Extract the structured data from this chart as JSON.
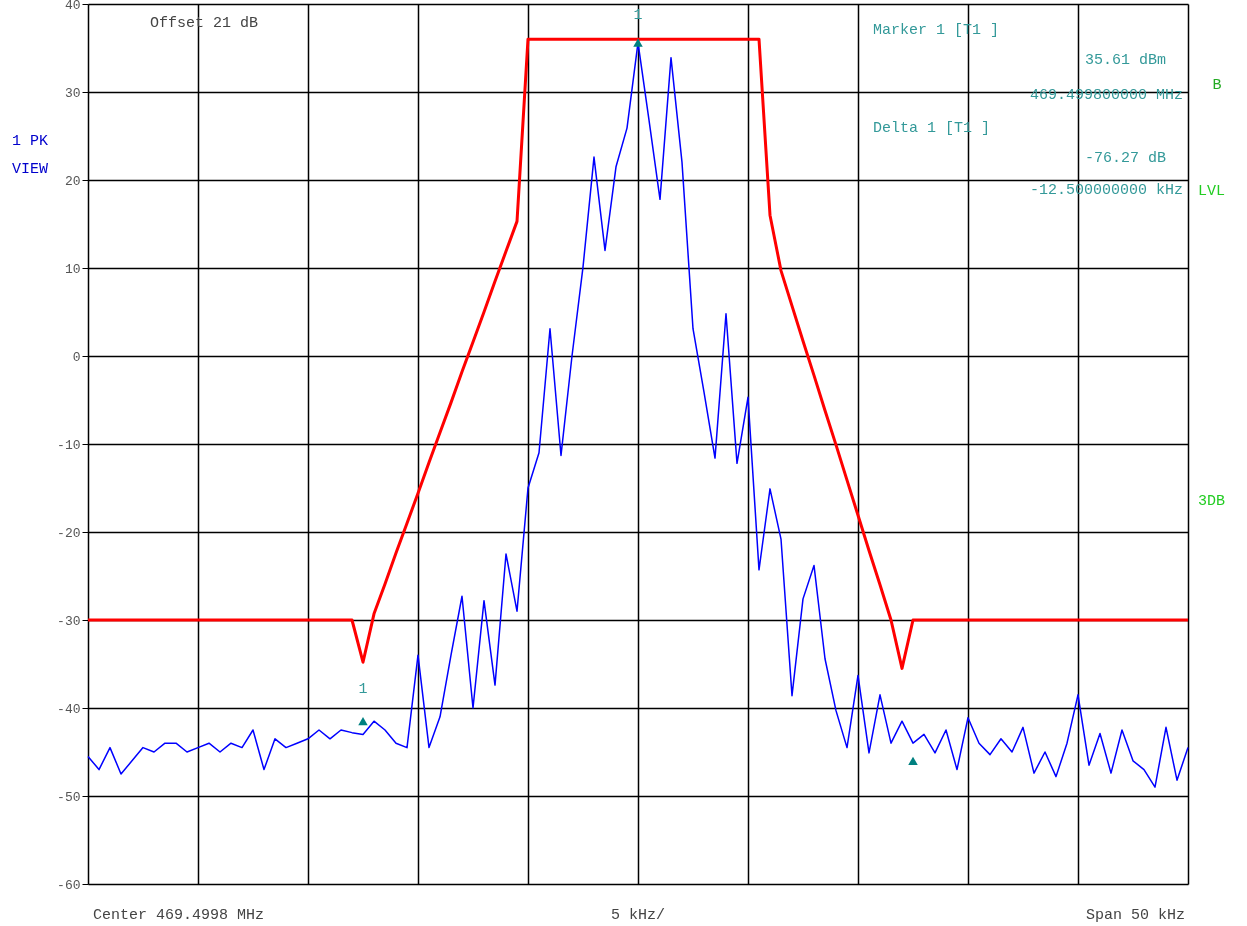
{
  "chart_data": {
    "type": "line",
    "categories": [
      null,
      null,
      null,
      null,
      null,
      null,
      null,
      null,
      null,
      null,
      null,
      null,
      null,
      null,
      null,
      null,
      null,
      null,
      null,
      null,
      null,
      null,
      null,
      null,
      null,
      null,
      null,
      null,
      null,
      null,
      null,
      null,
      null,
      null,
      null,
      null,
      null,
      null,
      null,
      null,
      null,
      null,
      null,
      null,
      null,
      null,
      null,
      null,
      null,
      null,
      null,
      null,
      null,
      null,
      null,
      null,
      null,
      null,
      null,
      null,
      null,
      null,
      null,
      null,
      null,
      null,
      null,
      null,
      null,
      null,
      null,
      null,
      null,
      null,
      null,
      null,
      null,
      null,
      null,
      null,
      null,
      null,
      null,
      null,
      null,
      null,
      null,
      null,
      null,
      null,
      null,
      null,
      null,
      null,
      null,
      null,
      null,
      null,
      null,
      null,
      null
    ],
    "ylim": [
      -60,
      40
    ],
    "yticks": [
      40,
      30,
      20,
      10,
      0,
      -10,
      -20,
      -30,
      -40,
      -50,
      -60
    ],
    "tick_labels": "y",
    "grid": true,
    "line_style": "solid",
    "series": [
      {
        "color": "#0000ff",
        "marker": "none",
        "values": [
          -45.5,
          -47,
          -44.5,
          -47.5,
          -46,
          -44.5,
          -45,
          -44,
          -44,
          -45,
          -44.5,
          -44,
          -45,
          -44,
          -44.5,
          -42.5,
          -47,
          -43.5,
          -44.5,
          -44,
          -43.5,
          -42.5,
          -43.5,
          -42.5,
          -42.8,
          -43,
          -41.5,
          -42.5,
          -44,
          -44.5,
          -34,
          -44.5,
          -41,
          -34,
          -27.3,
          -40,
          -27.8,
          -37.4,
          -22.5,
          -29,
          -15,
          -11,
          3.1,
          -11.3,
          0,
          10.1,
          22.6,
          12,
          21.5,
          25.9,
          35.6,
          26.8,
          17.8,
          33.9,
          22,
          3.1,
          -4.1,
          -11.6,
          4.8,
          -12.2,
          -4.7,
          -24.3,
          -15.1,
          -20.8,
          -38.6,
          -27.6,
          -23.8,
          -34.4,
          -40.3,
          -44.5,
          -36.3,
          -45.1,
          -38.5,
          -44,
          -41.5,
          -44,
          -43,
          -45.1,
          -42.5,
          -47,
          -41.1,
          -44,
          -45.3,
          -43.5,
          -45,
          -42.2,
          -47.4,
          -45,
          -47.8,
          -44,
          -38.5,
          -46.5,
          -42.9,
          -47.4,
          -42.5,
          -46,
          -47,
          -49,
          -42.2,
          -48.2,
          -44.5
        ]
      },
      {
        "color": "#ff0000",
        "marker": "none",
        "values": [
          -30,
          -30,
          -30,
          -30,
          -30,
          -30,
          -30,
          -30,
          -30,
          -30,
          -30,
          -30,
          -30,
          -30,
          -30,
          -30,
          -30,
          -30,
          -30,
          -30,
          -30,
          -30,
          -30,
          -30,
          -30,
          -34.8,
          -29.3,
          -25.9,
          -22.4,
          -19,
          -15.6,
          -12.1,
          -8.7,
          -5.3,
          -1.8,
          1.6,
          5,
          8.5,
          11.9,
          15.3,
          36,
          36,
          36,
          36,
          36,
          36,
          36,
          36,
          36,
          36,
          36,
          36,
          36,
          36,
          36,
          36,
          36,
          36,
          36,
          36,
          36,
          36,
          16,
          9.7,
          5.7,
          1.7,
          -2.2,
          -6.2,
          -10.1,
          -14.1,
          -18.1,
          -22.1,
          -26,
          -30,
          -35.5,
          -30,
          -30,
          -30,
          -30,
          -30,
          -30,
          -30,
          -30,
          -30,
          -30,
          -30,
          -30,
          -30,
          -30,
          -30,
          -30,
          -30,
          -30,
          -30,
          -30,
          -30,
          -30,
          -30,
          -30,
          -30,
          -30
        ]
      },
      {
        "type": "scatter",
        "color": "#008080",
        "marker": "triangle",
        "values": [
          null,
          null,
          null,
          null,
          null,
          null,
          null,
          null,
          null,
          null,
          null,
          null,
          null,
          null,
          null,
          null,
          null,
          null,
          null,
          null,
          null,
          null,
          null,
          null,
          null,
          -41.5,
          null,
          null,
          null,
          null,
          null,
          null,
          null,
          null,
          null,
          null,
          null,
          null,
          null,
          null,
          null,
          null,
          null,
          null,
          null,
          null,
          null,
          null,
          null,
          null,
          35.6,
          null,
          null,
          null,
          null,
          null,
          null,
          null,
          null,
          null,
          null,
          null,
          null,
          null,
          null,
          null,
          null,
          null,
          null,
          null,
          null,
          null,
          null,
          null,
          null,
          -46,
          null,
          null,
          null,
          null,
          null,
          null,
          null,
          null,
          null,
          null,
          null,
          null,
          null,
          null,
          null,
          null,
          null,
          null,
          null,
          null,
          null,
          null,
          null,
          null,
          null
        ]
      }
    ],
    "annotations": [
      "Offset 21 dB",
      "Marker 1 [T1 ]",
      "35.61 dBm",
      "469.499800000 MHz",
      "Delta 1 [T1 ]",
      "-76.27 dB",
      "-12.500000000 kHz",
      "1 PK",
      "VIEW",
      "B",
      "LVL",
      "3DB",
      "Center 469.4998 MHz",
      "5 kHz/",
      "Span 50 kHz",
      "1",
      "1"
    ]
  }
}
